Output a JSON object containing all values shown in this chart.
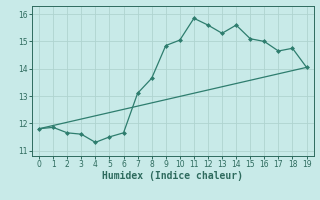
{
  "title": "",
  "xlabel": "Humidex (Indice chaleur)",
  "ylabel": "",
  "line1_x": [
    0,
    1,
    2,
    3,
    4,
    5,
    6,
    7,
    8,
    9,
    10,
    11,
    12,
    13,
    14,
    15,
    16,
    17,
    18,
    19
  ],
  "line1_y": [
    11.8,
    11.85,
    11.65,
    11.6,
    11.3,
    11.5,
    11.65,
    13.1,
    13.65,
    14.85,
    15.05,
    15.85,
    15.6,
    15.3,
    15.6,
    15.1,
    15.0,
    14.65,
    14.75,
    14.05
  ],
  "line2_x": [
    0,
    19
  ],
  "line2_y": [
    11.8,
    14.05
  ],
  "line_color": "#2e7d6e",
  "bg_color": "#c8eae8",
  "grid_color": "#afd4d0",
  "tick_color": "#2e6b5e",
  "spine_color": "#2e6b5e",
  "xlim": [
    -0.5,
    19.5
  ],
  "ylim": [
    10.8,
    16.3
  ],
  "yticks": [
    11,
    12,
    13,
    14,
    15,
    16
  ],
  "xticks": [
    0,
    1,
    2,
    3,
    4,
    5,
    6,
    7,
    8,
    9,
    10,
    11,
    12,
    13,
    14,
    15,
    16,
    17,
    18,
    19
  ],
  "xlabel_fontsize": 7.0,
  "tick_fontsize": 5.5,
  "marker": "D",
  "markersize": 2.0,
  "linewidth": 0.9
}
